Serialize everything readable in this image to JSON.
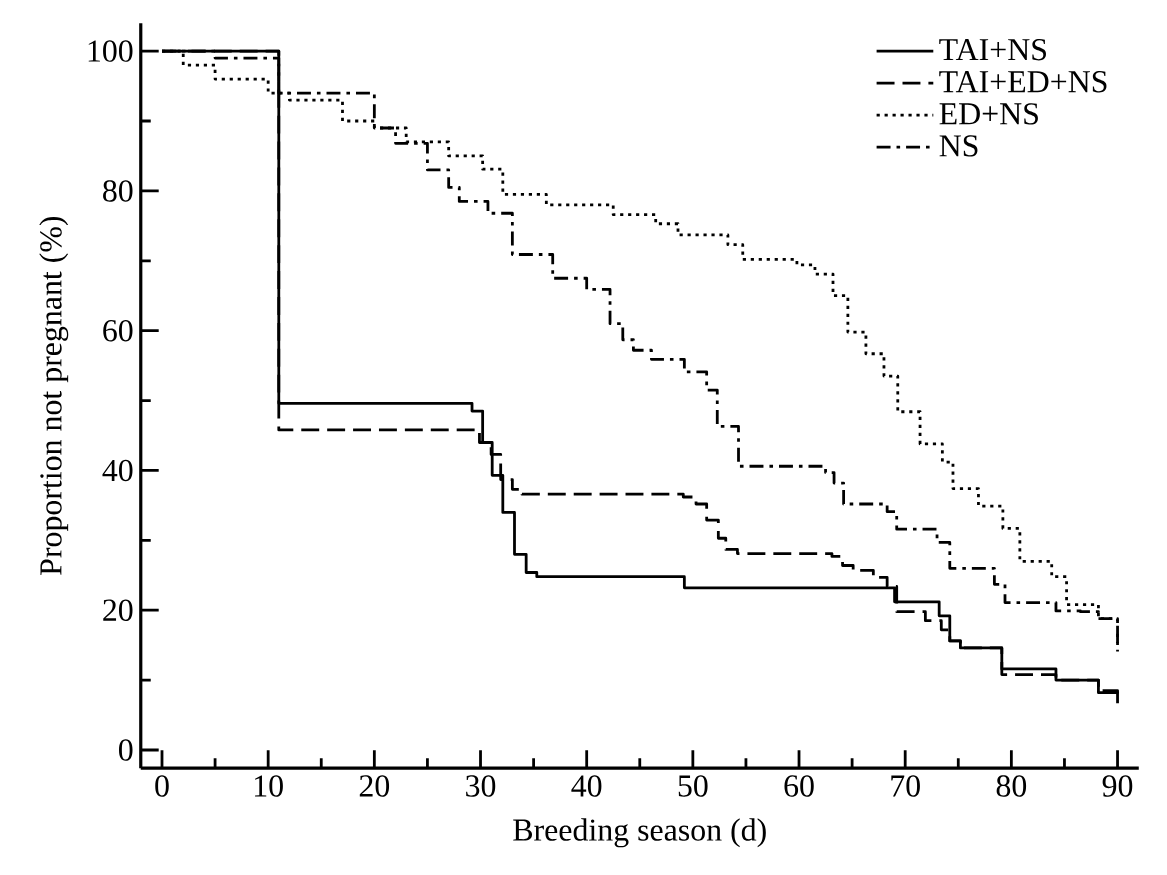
{
  "chart_data": {
    "type": "step",
    "xlabel": "Breeding season (d)",
    "ylabel": "Proportion not pregnant (%)",
    "xlim": [
      -2,
      92
    ],
    "ylim": [
      -2.6,
      104
    ],
    "xticks": [
      0,
      {
        "value": 5,
        "label": null
      },
      10,
      {
        "value": 15,
        "label": null
      },
      20,
      {
        "value": 25,
        "label": null
      },
      30,
      {
        "value": 35,
        "label": null
      },
      40,
      {
        "value": 45,
        "label": null
      },
      50,
      {
        "value": 55,
        "label": null
      },
      60,
      {
        "value": 65,
        "label": null
      },
      70,
      {
        "value": 75,
        "label": null
      },
      80,
      {
        "value": 85,
        "label": null
      },
      90
    ],
    "yticks": [
      0,
      {
        "value": 10,
        "label": null
      },
      20,
      {
        "value": 30,
        "label": null
      },
      40,
      {
        "value": 50,
        "label": null
      },
      60,
      {
        "value": 70,
        "label": null
      },
      80,
      {
        "value": 90,
        "label": null
      },
      100
    ],
    "legend": "top right",
    "series": [
      {
        "name": "TAI+NS",
        "color": "#000000",
        "line_style": "solid",
        "x": [
          0,
          11,
          29.2,
          30.2,
          31.1,
          32.1,
          33.2,
          34.3,
          35.3,
          49.2,
          69,
          73.2,
          74.2,
          75.2,
          79.1,
          84.2,
          88.2,
          90
        ],
        "values": [
          100,
          49.6,
          48.5,
          44.0,
          39.3,
          34.0,
          28.0,
          25.4,
          24.8,
          23.2,
          21.2,
          19.2,
          15.6,
          14.6,
          11.6,
          10.0,
          8.2,
          6.7
        ]
      },
      {
        "name": "TAI+ED+NS",
        "color": "#000000",
        "line_style": "dashed",
        "x": [
          0,
          11,
          29.9,
          31.0,
          31.9,
          33.0,
          33.9,
          49.1,
          50.3,
          51.3,
          52.4,
          53.1,
          54.2,
          63.1,
          64.1,
          65.1,
          67.0,
          68.3,
          69.2,
          71.9,
          73.4,
          74.2,
          75.2,
          79.1,
          84.2,
          88.2,
          90
        ],
        "values": [
          100,
          45.8,
          44.0,
          42.3,
          38.7,
          37.3,
          36.6,
          36.2,
          35.2,
          32.9,
          30.3,
          28.7,
          28.1,
          27.7,
          26.4,
          25.7,
          24.7,
          23.4,
          19.8,
          18.5,
          17.2,
          15.6,
          14.6,
          10.8,
          10.0,
          8.5,
          7.2
        ]
      },
      {
        "name": "ED+NS",
        "color": "#000000",
        "line_style": "dotted",
        "x": [
          0,
          2,
          5,
          10,
          12,
          17,
          20,
          23,
          27,
          30.2,
          32.1,
          36.2,
          42.5,
          46.5,
          48.6,
          53.3,
          54.7,
          59.8,
          61.5,
          63.2,
          64.6,
          66.3,
          68.0,
          69.3,
          71.4,
          73.5,
          74.5,
          76.9,
          79.2,
          80.8,
          83.8,
          85.2,
          88.2,
          90
        ],
        "values": [
          100,
          98,
          96,
          94,
          93,
          90,
          89,
          87,
          85,
          83.1,
          79.5,
          78.0,
          76.6,
          75.3,
          73.7,
          72.3,
          70.2,
          69.4,
          68.1,
          65.0,
          59.8,
          56.7,
          53.5,
          48.4,
          43.8,
          41.2,
          37.4,
          34.9,
          31.7,
          27.0,
          24.8,
          20.8,
          18.8,
          14.1
        ]
      },
      {
        "name": "NS",
        "color": "#000000",
        "line_style": "dashdot",
        "x": [
          0,
          5,
          11,
          20,
          22,
          25,
          27,
          28,
          30.7,
          33,
          36.8,
          40,
          42.2,
          43.4,
          44.4,
          46.1,
          49.2,
          51.3,
          52.3,
          54.3,
          62.5,
          63.3,
          64.2,
          68.3,
          69.2,
          73.0,
          74.2,
          78.4,
          79.4,
          84.2,
          86.5,
          88.2,
          90
        ],
        "values": [
          100,
          99,
          94,
          89,
          86.8,
          83,
          80.5,
          78.5,
          76.8,
          70.9,
          67.5,
          65.9,
          61.0,
          58.7,
          57.2,
          55.9,
          54.1,
          51.5,
          46.3,
          40.6,
          39.7,
          38.2,
          35.2,
          34.1,
          31.6,
          29.7,
          26.0,
          23.7,
          21.1,
          19.9,
          19.8,
          18.8,
          14.6
        ]
      }
    ]
  }
}
